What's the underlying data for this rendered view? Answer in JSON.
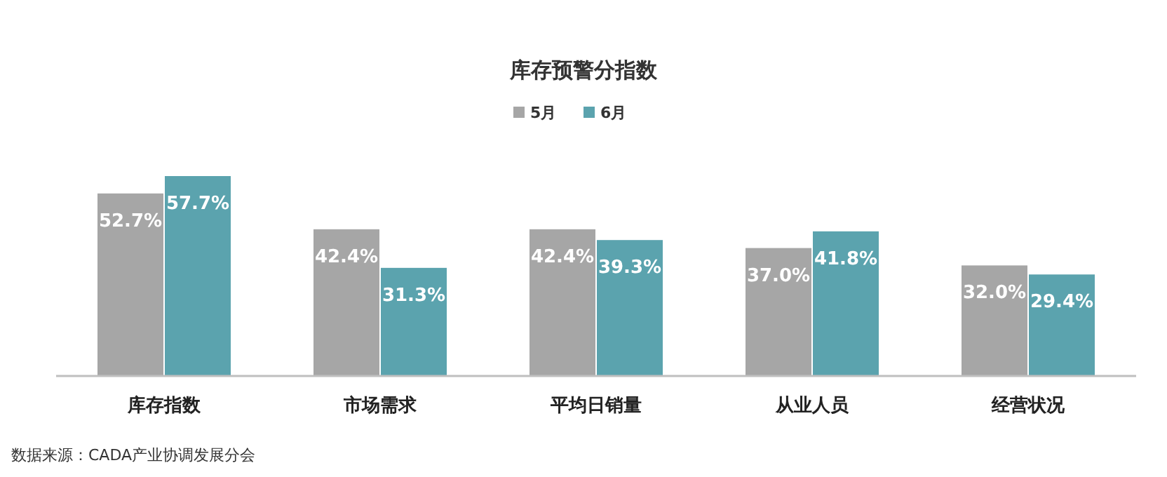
{
  "chart_data": {
    "type": "bar",
    "title": "库存预警分指数",
    "categories": [
      "库存指数",
      "市场需求",
      "平均日销量",
      "从业人员",
      "经营状况"
    ],
    "series": [
      {
        "name": "5月",
        "color": "#a6a6a6",
        "values": [
          52.7,
          42.4,
          42.4,
          37.0,
          32.0
        ],
        "value_labels": [
          "52.7%",
          "42.4%",
          "42.4%",
          "37.0%",
          "32.0%"
        ]
      },
      {
        "name": "6月",
        "color": "#5ba3ae",
        "values": [
          57.7,
          31.3,
          39.3,
          41.8,
          29.4
        ],
        "value_labels": [
          "57.7%",
          "31.3%",
          "39.3%",
          "41.8%",
          "29.4%"
        ]
      }
    ],
    "legend": "top",
    "annotations": [
      "数据来源：CADA产业协调发展分会"
    ]
  }
}
